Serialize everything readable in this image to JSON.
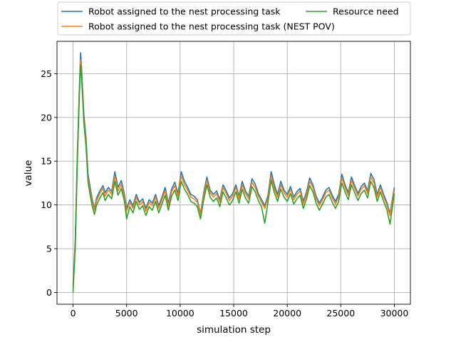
{
  "chart_data": {
    "type": "line",
    "xlabel": "simulation step",
    "ylabel": "value",
    "xlim": [
      -1500,
      31500
    ],
    "ylim": [
      -1.35,
      28.7
    ],
    "xticks": [
      0,
      5000,
      10000,
      15000,
      20000,
      25000,
      30000
    ],
    "yticks": [
      0,
      5,
      10,
      15,
      20,
      25
    ],
    "grid": true,
    "legend": {
      "placement": "top-center-above-plot",
      "columns": 2
    },
    "series": [
      {
        "name": "Robot assigned to the nest processing task",
        "color": "#1f77b4",
        "x": [
          0,
          200,
          400,
          600,
          700,
          800,
          1000,
          1200,
          1400,
          1600,
          1800,
          2000,
          2200,
          2500,
          2800,
          3000,
          3300,
          3600,
          3900,
          4200,
          4500,
          4800,
          5000,
          5300,
          5600,
          5900,
          6200,
          6500,
          6800,
          7100,
          7400,
          7700,
          8000,
          8300,
          8600,
          8900,
          9200,
          9500,
          9800,
          10100,
          10400,
          10700,
          11000,
          11300,
          11600,
          11900,
          12200,
          12500,
          12800,
          13100,
          13400,
          13700,
          14000,
          14300,
          14600,
          14900,
          15200,
          15500,
          15800,
          16100,
          16400,
          16700,
          17000,
          17300,
          17600,
          17900,
          18200,
          18500,
          18800,
          19100,
          19400,
          19700,
          20000,
          20300,
          20600,
          20900,
          21200,
          21500,
          21800,
          22100,
          22400,
          22700,
          23000,
          23300,
          23600,
          23900,
          24200,
          24500,
          24800,
          25100,
          25400,
          25700,
          26000,
          26300,
          26600,
          26900,
          27200,
          27500,
          27800,
          28100,
          28400,
          28700,
          29000,
          29300,
          29600,
          29900,
          30000
        ],
        "y": [
          0.8,
          6,
          16,
          24,
          27.4,
          25.5,
          20.5,
          17.8,
          13.5,
          12.0,
          10.6,
          9.6,
          10.8,
          11.6,
          12.2,
          11.4,
          12.0,
          11.5,
          13.8,
          12.0,
          12.8,
          11.2,
          9.6,
          10.6,
          9.9,
          11.2,
          10.3,
          10.7,
          9.6,
          10.6,
          10.2,
          11.2,
          9.9,
          10.9,
          12.0,
          10.2,
          11.8,
          12.6,
          11.3,
          13.8,
          12.7,
          12.0,
          11.2,
          11.0,
          10.6,
          9.0,
          11.4,
          13.2,
          11.7,
          11.2,
          11.6,
          10.6,
          12.3,
          11.6,
          10.8,
          11.3,
          12.3,
          11.0,
          12.7,
          11.6,
          11.0,
          13.0,
          12.4,
          11.3,
          10.6,
          9.9,
          11.1,
          13.8,
          12.3,
          11.2,
          12.7,
          11.7,
          11.2,
          12.1,
          10.9,
          11.5,
          11.9,
          10.4,
          11.5,
          13.1,
          12.3,
          11.0,
          10.2,
          10.9,
          11.7,
          12.0,
          11.1,
          10.4,
          11.2,
          13.5,
          12.3,
          11.4,
          13.2,
          12.2,
          11.3,
          12.1,
          12.5,
          11.6,
          13.6,
          12.9,
          11.2,
          12.3,
          11.2,
          10.3,
          9.0,
          11.3,
          12.0
        ]
      },
      {
        "name": "Robot assigned to the nest processing task (NEST POV)",
        "color": "#ff7f0e",
        "x": [
          0,
          200,
          400,
          600,
          700,
          800,
          1000,
          1200,
          1400,
          1600,
          1800,
          2000,
          2200,
          2500,
          2800,
          3000,
          3300,
          3600,
          3900,
          4200,
          4500,
          4800,
          5000,
          5300,
          5600,
          5900,
          6200,
          6500,
          6800,
          7100,
          7400,
          7700,
          8000,
          8300,
          8600,
          8900,
          9200,
          9500,
          9800,
          10100,
          10400,
          10700,
          11000,
          11300,
          11600,
          11900,
          12200,
          12500,
          12800,
          13100,
          13400,
          13700,
          14000,
          14300,
          14600,
          14900,
          15200,
          15500,
          15800,
          16100,
          16400,
          16700,
          17000,
          17300,
          17600,
          17900,
          18200,
          18500,
          18800,
          19100,
          19400,
          19700,
          20000,
          20300,
          20600,
          20900,
          21200,
          21500,
          21800,
          22100,
          22400,
          22700,
          23000,
          23300,
          23600,
          23900,
          24200,
          24500,
          24800,
          25100,
          25400,
          25700,
          26000,
          26300,
          26600,
          26900,
          27200,
          27500,
          27800,
          28100,
          28400,
          28700,
          29000,
          29300,
          29600,
          29900,
          30000
        ],
        "y": [
          0.5,
          5.5,
          15.5,
          23.5,
          26.6,
          25.0,
          20.0,
          17.3,
          13.1,
          11.6,
          10.3,
          9.4,
          10.5,
          11.3,
          11.9,
          11.0,
          11.7,
          11.2,
          13.3,
          11.6,
          12.4,
          10.9,
          9.3,
          10.3,
          9.6,
          10.9,
          10.0,
          10.4,
          9.3,
          10.3,
          9.9,
          10.9,
          9.6,
          10.6,
          11.6,
          9.9,
          11.5,
          12.2,
          11.0,
          13.3,
          12.3,
          11.7,
          10.9,
          10.7,
          10.3,
          8.9,
          11.1,
          12.8,
          11.4,
          10.9,
          11.3,
          10.3,
          12.0,
          11.3,
          10.5,
          11.0,
          12.0,
          10.7,
          12.3,
          11.3,
          10.7,
          12.6,
          12.0,
          11.0,
          10.3,
          9.6,
          10.8,
          13.3,
          11.9,
          10.9,
          12.3,
          11.4,
          10.9,
          11.8,
          10.6,
          11.2,
          11.6,
          10.1,
          11.2,
          12.7,
          12.0,
          10.7,
          9.9,
          10.6,
          11.4,
          11.7,
          10.8,
          10.1,
          10.9,
          13.1,
          12.0,
          11.1,
          12.8,
          11.9,
          11.0,
          11.8,
          12.2,
          11.3,
          13.2,
          12.5,
          10.9,
          12.0,
          10.9,
          10.0,
          8.8,
          11.0,
          11.7
        ]
      },
      {
        "name": "Resource need",
        "color": "#2ca02c",
        "x": [
          0,
          200,
          400,
          600,
          700,
          800,
          1000,
          1200,
          1400,
          1600,
          1800,
          2000,
          2200,
          2500,
          2800,
          3000,
          3300,
          3600,
          3900,
          4200,
          4500,
          4800,
          5000,
          5300,
          5600,
          5900,
          6200,
          6500,
          6800,
          7100,
          7400,
          7700,
          8000,
          8300,
          8600,
          8900,
          9200,
          9500,
          9800,
          10100,
          10400,
          10700,
          11000,
          11300,
          11600,
          11900,
          12200,
          12500,
          12800,
          13100,
          13400,
          13700,
          14000,
          14300,
          14600,
          14900,
          15200,
          15500,
          15800,
          16100,
          16400,
          16700,
          17000,
          17300,
          17600,
          17900,
          18200,
          18500,
          18800,
          19100,
          19400,
          19700,
          20000,
          20300,
          20600,
          20900,
          21200,
          21500,
          21800,
          22100,
          22400,
          22700,
          23000,
          23300,
          23600,
          23900,
          24200,
          24500,
          24800,
          25100,
          25400,
          25700,
          26000,
          26300,
          26600,
          26900,
          27200,
          27500,
          27800,
          28100,
          28400,
          28700,
          29000,
          29300,
          29600,
          29900,
          30000
        ],
        "y": [
          0.0,
          5.0,
          15.0,
          23.0,
          26.0,
          24.5,
          19.5,
          16.8,
          12.6,
          11.1,
          9.8,
          8.9,
          10.0,
          10.8,
          11.4,
          10.5,
          11.2,
          10.7,
          12.7,
          11.1,
          11.9,
          10.4,
          8.4,
          9.8,
          9.1,
          10.4,
          9.5,
          9.9,
          8.8,
          9.8,
          9.4,
          10.4,
          9.1,
          10.1,
          11.1,
          9.4,
          11.0,
          11.7,
          10.5,
          12.7,
          11.8,
          11.2,
          10.4,
          10.2,
          9.8,
          8.4,
          10.6,
          12.3,
          10.9,
          10.4,
          10.8,
          9.8,
          11.5,
          10.8,
          10.0,
          10.5,
          11.5,
          10.2,
          11.8,
          10.8,
          10.2,
          12.1,
          11.5,
          10.5,
          9.8,
          7.9,
          10.3,
          12.8,
          11.4,
          10.4,
          11.8,
          10.9,
          10.4,
          11.3,
          10.1,
          10.7,
          11.1,
          9.6,
          10.7,
          12.2,
          11.5,
          10.2,
          9.4,
          10.1,
          10.9,
          11.2,
          10.3,
          9.6,
          10.4,
          12.5,
          11.5,
          10.6,
          12.3,
          11.4,
          10.5,
          11.3,
          11.7,
          10.8,
          12.7,
          12.0,
          10.4,
          11.5,
          10.4,
          9.5,
          7.8,
          10.5,
          11.3
        ]
      }
    ]
  }
}
